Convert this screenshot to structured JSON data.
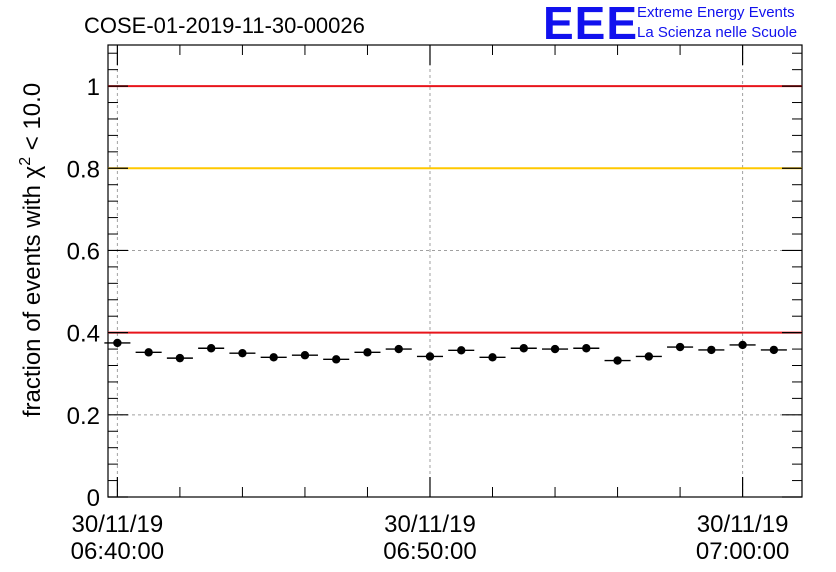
{
  "logo": {
    "mark": "EEE",
    "line1": "Extreme Energy Events",
    "line2": "La Scienza nelle Scuole"
  },
  "chart_data": {
    "type": "scatter",
    "title": "COSE-01-2019-11-30-00026",
    "ylabel": "fraction of events with χ² < 10.0",
    "ylim": [
      0,
      1.1
    ],
    "yticks": [
      {
        "value": 0,
        "label": "0"
      },
      {
        "value": 0.2,
        "label": "0.2"
      },
      {
        "value": 0.4,
        "label": "0.4"
      },
      {
        "value": 0.6,
        "label": "0.6"
      },
      {
        "value": 0.8,
        "label": "0.8"
      },
      {
        "value": 1,
        "label": "1"
      }
    ],
    "xlim_minutes": [
      -0.3,
      21.9
    ],
    "xticks": [
      {
        "value": 0,
        "date": "30/11/19",
        "time": "06:40:00"
      },
      {
        "value": 10,
        "date": "30/11/19",
        "time": "06:50:00"
      },
      {
        "value": 20,
        "date": "30/11/19",
        "time": "07:00:00"
      }
    ],
    "reference_lines": [
      {
        "value": 1.0,
        "color": "#e8141b"
      },
      {
        "value": 0.8,
        "color": "#ffc800"
      },
      {
        "value": 0.4,
        "color": "#e8141b"
      }
    ],
    "grid": true,
    "bin_width_minutes": 0.8333,
    "series": [
      {
        "x_minutes": [
          0.0,
          1.0,
          2.0,
          3.0,
          4.0,
          5.0,
          6.0,
          7.0,
          8.0,
          9.0,
          10.0,
          11.0,
          12.0,
          13.0,
          14.0,
          15.0,
          16.0,
          17.0,
          18.0,
          19.0,
          20.0,
          21.0
        ],
        "y": [
          0.375,
          0.352,
          0.338,
          0.362,
          0.35,
          0.34,
          0.345,
          0.335,
          0.352,
          0.36,
          0.342,
          0.357,
          0.34,
          0.362,
          0.36,
          0.362,
          0.332,
          0.342,
          0.365,
          0.358,
          0.37,
          0.358
        ],
        "color": "#000000"
      }
    ]
  }
}
